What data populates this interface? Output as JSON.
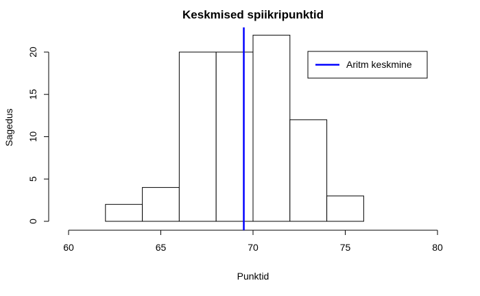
{
  "chart_data": {
    "type": "bar",
    "title": "Keskmised spiikripunktid",
    "xlabel": "Punktid",
    "ylabel": "Sagedus",
    "bins": [
      {
        "start": 62,
        "end": 64,
        "count": 2
      },
      {
        "start": 64,
        "end": 66,
        "count": 4
      },
      {
        "start": 66,
        "end": 68,
        "count": 20
      },
      {
        "start": 68,
        "end": 70,
        "count": 20
      },
      {
        "start": 70,
        "end": 72,
        "count": 22
      },
      {
        "start": 72,
        "end": 74,
        "count": 12
      },
      {
        "start": 74,
        "end": 76,
        "count": 3
      }
    ],
    "xlim": [
      60,
      80
    ],
    "ylim": [
      0,
      22
    ],
    "x_ticks": [
      60,
      65,
      70,
      75,
      80
    ],
    "y_ticks": [
      0,
      5,
      10,
      15,
      20
    ],
    "mean_line": {
      "x": 69.5,
      "label": "Aritm keskmine",
      "color": "#0000ff"
    },
    "legend": {
      "position": "top-right",
      "entries": [
        "Aritm keskmine"
      ]
    },
    "grid": false,
    "bar_fill": "#ffffff",
    "bar_stroke": "#000000"
  }
}
